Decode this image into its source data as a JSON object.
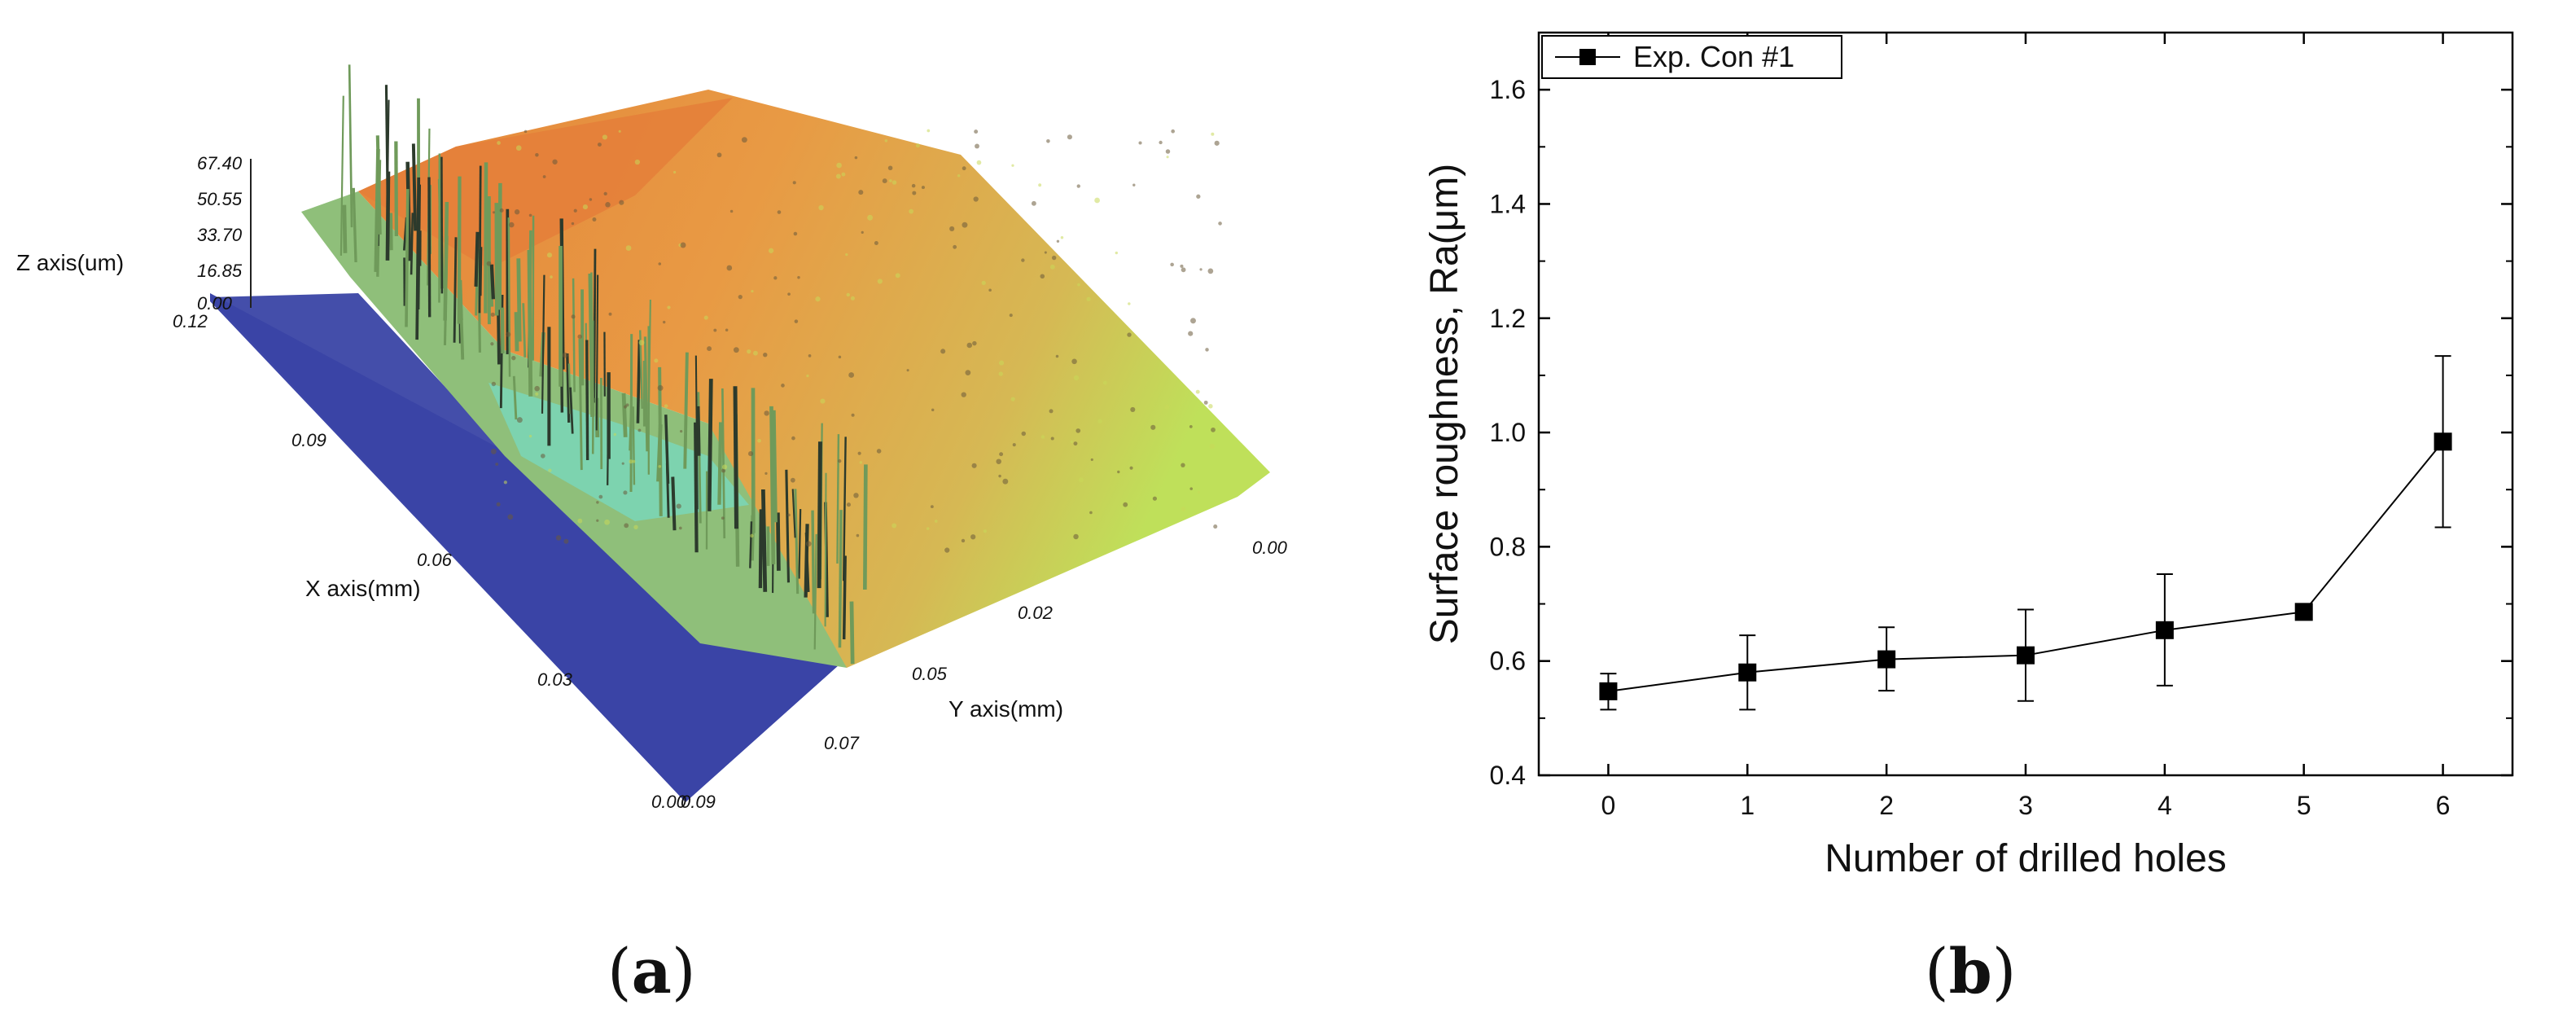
{
  "panels": {
    "a_label": "a",
    "b_label": "b"
  },
  "chart_data": [
    {
      "type": "surface3d",
      "z_label": "Z axis(um)",
      "x_label": "X axis(mm)",
      "y_label": "Y axis(mm)",
      "z_ticks": [
        "67.40",
        "50.55",
        "33.70",
        "16.85",
        "0.00"
      ],
      "x_ticks": [
        "0.12",
        "0.09",
        "0.06",
        "0.03",
        "0.00"
      ],
      "y_ticks": [
        "0.09",
        "0.07",
        "0.05",
        "0.02",
        "0.00"
      ],
      "colors": {
        "base": "#3c46a8",
        "low": "#7ad6b8",
        "mid": "#c8e35a",
        "high": "#e8803a",
        "spikes": "#2c3a2c"
      }
    },
    {
      "type": "line",
      "x": [
        0,
        1,
        2,
        3,
        4,
        5,
        6
      ],
      "xlabel": "Number of drilled holes",
      "ylabel": "Surface roughness, Ra(μm)",
      "xlim": [
        -0.5,
        6.5
      ],
      "ylim": [
        0.4,
        1.7
      ],
      "x_ticks": [
        0,
        1,
        2,
        3,
        4,
        5,
        6
      ],
      "y_ticks": [
        0.4,
        0.6,
        0.8,
        1.0,
        1.2,
        1.4,
        1.6
      ],
      "y_tick_labels": [
        "0.4",
        "0.6",
        "0.8",
        "1.0",
        "1.2",
        "1.4",
        "1.6"
      ],
      "grid": false,
      "legend_position": "top-left",
      "series": [
        {
          "name": "Exp. Con #1",
          "marker": "square",
          "color": "#000000",
          "values": [
            0.547,
            0.58,
            0.603,
            0.61,
            0.654,
            0.686,
            0.984
          ],
          "err_low": [
            0.515,
            0.515,
            0.548,
            0.53,
            0.557,
            0.676,
            0.834
          ],
          "err_high": [
            0.578,
            0.645,
            0.659,
            0.69,
            0.752,
            0.696,
            1.134
          ]
        }
      ]
    }
  ]
}
